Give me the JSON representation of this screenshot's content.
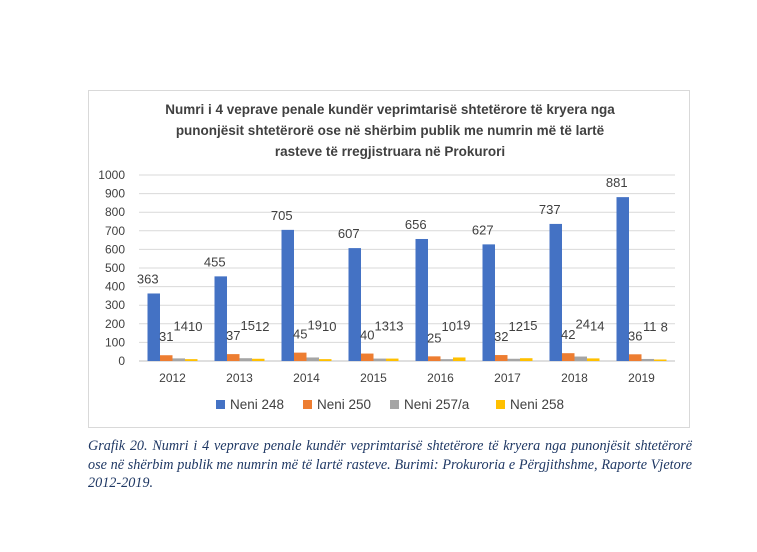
{
  "chart_data": {
    "type": "bar",
    "title_lines": [
      "Numri i 4 veprave penale kundër veprimtarisë shtetërore të kryera nga",
      "punonjësit shtetërorë ose në shërbim publik me numrin më të lartë",
      "rasteve të rregjistruara në Prokurori"
    ],
    "categories": [
      "2012",
      "2013",
      "2014",
      "2015",
      "2016",
      "2017",
      "2018",
      "2019"
    ],
    "ylim": [
      0,
      1000
    ],
    "yticks": [
      0,
      100,
      200,
      300,
      400,
      500,
      600,
      700,
      800,
      900,
      1000
    ],
    "grid": true,
    "legend_position": "bottom",
    "series": [
      {
        "name": "Neni 248",
        "color": "#4472c4",
        "values": [
          363,
          455,
          705,
          607,
          656,
          627,
          737,
          881
        ]
      },
      {
        "name": "Neni 250",
        "color": "#ed7d31",
        "values": [
          31,
          37,
          45,
          40,
          25,
          32,
          42,
          36
        ]
      },
      {
        "name": "Neni 257/a",
        "color": "#a5a5a5",
        "values": [
          14,
          15,
          19,
          13,
          10,
          12,
          24,
          11
        ]
      },
      {
        "name": "Neni 258",
        "color": "#ffc000",
        "values": [
          10,
          12,
          10,
          13,
          19,
          15,
          14,
          8
        ]
      }
    ]
  },
  "caption": "Grafik 20. Numri i 4 veprave penale kundër veprimtarisë shtetërore të kryera nga punonjësit shtetërorë ose në shërbim publik me numrin më të lartë rasteve. Burimi: Prokuroria e Përgjithshme, Raporte Vjetore 2012-2019."
}
